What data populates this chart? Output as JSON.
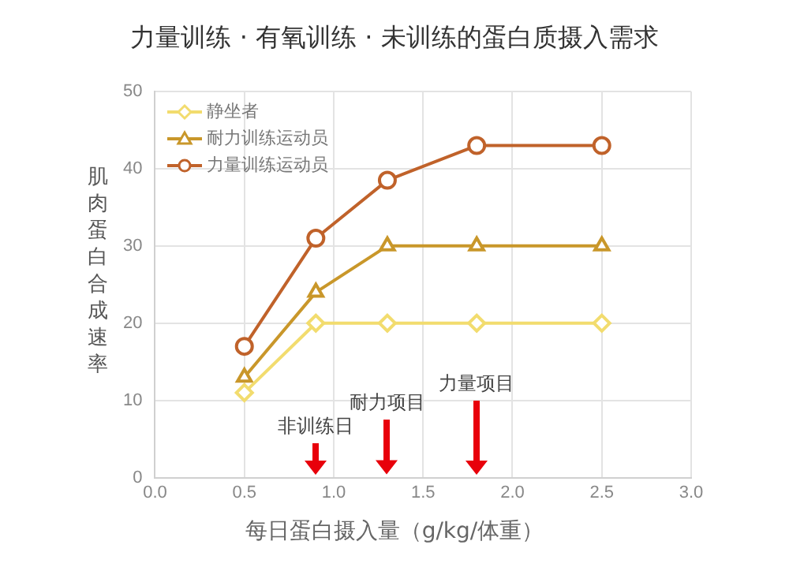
{
  "chart_data": {
    "type": "line",
    "title": "力量训练 · 有氧训练 · 未训练的蛋白质摄入需求",
    "xlabel": "每日蛋白摄入量（g/kg/体重）",
    "ylabel": "肌肉蛋白合成速率",
    "x": [
      0.5,
      0.9,
      1.3,
      1.8,
      2.5
    ],
    "series": [
      {
        "name": "静坐者",
        "color": "#f2dc6e",
        "marker": "diamond",
        "values": [
          11,
          20,
          20,
          20,
          20
        ]
      },
      {
        "name": "耐力训练运动员",
        "color": "#c9972a",
        "marker": "triangle",
        "values": [
          13,
          24,
          30,
          30,
          30
        ]
      },
      {
        "name": "力量训练运动员",
        "color": "#c0622a",
        "marker": "circle",
        "values": [
          17,
          31,
          38.5,
          43,
          43
        ]
      }
    ],
    "xlim": [
      0,
      3
    ],
    "xticks": [
      {
        "value": 0,
        "label": "0.0"
      },
      {
        "value": 0.5,
        "label": "0.5"
      },
      {
        "value": 1,
        "label": "1.0"
      },
      {
        "value": 1.5,
        "label": "1.5"
      },
      {
        "value": 2,
        "label": "2.0"
      },
      {
        "value": 2.5,
        "label": "2.5"
      },
      {
        "value": 3,
        "label": "3.0"
      }
    ],
    "ylim": [
      0,
      50
    ],
    "yticks": [
      0,
      10,
      20,
      30,
      40,
      50
    ],
    "grid": true,
    "legend": "top left",
    "annotations": [
      "非训练日",
      "耐力项目",
      "力量项目"
    ]
  }
}
